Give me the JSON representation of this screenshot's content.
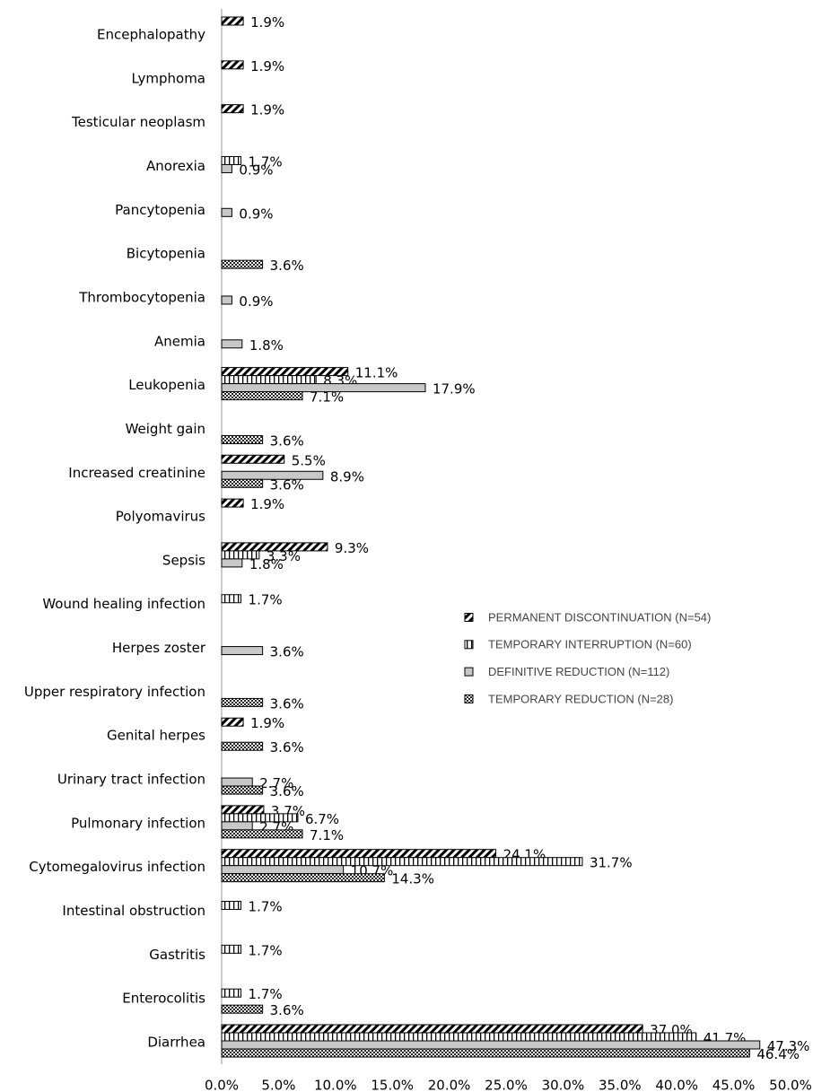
{
  "chart_data": {
    "type": "hbar",
    "categories": [
      "Encephalopathy",
      "Lymphoma",
      "Testicular neoplasm",
      "Anorexia",
      "Pancytopenia",
      "Bicytopenia",
      "Thrombocytopenia",
      "Anemia",
      "Leukopenia",
      "Weight gain",
      "Increased creatinine",
      "Polyomavirus",
      "Sepsis",
      "Wound healing infection",
      "Herpes zoster",
      "Upper respiratory infection",
      "Genital herpes",
      "Urinary tract infection",
      "Pulmonary infection",
      "Cytomegalovirus infection",
      "Intestinal obstruction",
      "Gastritis",
      "Enterocolitis",
      "Diarrhea"
    ],
    "series": [
      {
        "name": "PERMANENT DISCONTINUATION (N=54)",
        "color": "#000000",
        "pattern": "diagonal",
        "values": [
          1.9,
          1.9,
          1.9,
          null,
          null,
          null,
          null,
          null,
          11.1,
          null,
          5.5,
          1.9,
          9.3,
          null,
          null,
          null,
          1.9,
          null,
          3.7,
          24.1,
          null,
          null,
          null,
          37.0
        ],
        "value_labels": [
          "1.9%",
          "1.9%",
          "1.9%",
          null,
          null,
          null,
          null,
          null,
          "11.1%",
          null,
          "5.5%",
          "1.9%",
          "9.3%",
          null,
          null,
          null,
          "1.9%",
          null,
          "3.7%",
          "24.1%",
          null,
          null,
          null,
          "37.0%"
        ]
      },
      {
        "name": "TEMPORARY INTERRUPTION (N=60)",
        "color": "#000000",
        "pattern": "vertical",
        "values": [
          null,
          null,
          null,
          1.7,
          null,
          null,
          null,
          null,
          8.3,
          null,
          null,
          null,
          3.3,
          1.7,
          null,
          null,
          null,
          null,
          6.7,
          31.7,
          1.7,
          1.7,
          1.7,
          41.7
        ],
        "value_labels": [
          null,
          null,
          null,
          "1.7%",
          null,
          null,
          null,
          null,
          "8.3%",
          null,
          null,
          null,
          "3.3%",
          "1.7%",
          null,
          null,
          null,
          null,
          "6.7%",
          "31.7%",
          "1.7%",
          "1.7%",
          "1.7%",
          "41.7%"
        ]
      },
      {
        "name": "DEFINITIVE REDUCTION (N=112)",
        "color": "#c8c8c8",
        "pattern": "solid",
        "values": [
          null,
          null,
          null,
          0.9,
          0.9,
          null,
          0.9,
          1.8,
          17.9,
          null,
          8.9,
          null,
          1.8,
          null,
          3.6,
          null,
          null,
          2.7,
          2.7,
          10.7,
          null,
          null,
          null,
          47.3
        ],
        "value_labels": [
          null,
          null,
          null,
          "0.9%",
          "0.9%",
          null,
          "0.9%",
          "1.8%",
          "17.9%",
          null,
          "8.9%",
          null,
          "1.8%",
          null,
          "3.6%",
          null,
          null,
          "2.7%",
          "2.7%",
          "10.7%",
          null,
          null,
          null,
          "47.3%"
        ]
      },
      {
        "name": "TEMPORARY REDUCTION (N=28)",
        "color": "#000000",
        "pattern": "checker",
        "values": [
          null,
          null,
          null,
          null,
          null,
          3.6,
          null,
          null,
          7.1,
          3.6,
          3.6,
          null,
          null,
          null,
          null,
          3.6,
          3.6,
          3.6,
          7.1,
          14.3,
          null,
          null,
          3.6,
          46.4
        ],
        "value_labels": [
          null,
          null,
          null,
          null,
          null,
          "3.6%",
          null,
          null,
          "7.1%",
          "3.6%",
          "3.6%",
          null,
          null,
          null,
          null,
          "3.6%",
          "3.6%",
          "3.6%",
          "7.1%",
          "14.3%",
          null,
          null,
          "3.6%",
          "46.4%"
        ]
      }
    ],
    "xlim": [
      0,
      50
    ],
    "xticks": [
      {
        "value": 0,
        "label": "0.0%"
      },
      {
        "value": 5,
        "label": "5.0%"
      },
      {
        "value": 10,
        "label": "10.0%"
      },
      {
        "value": 15,
        "label": "15.0%"
      },
      {
        "value": 20,
        "label": "20.0%"
      },
      {
        "value": 25,
        "label": "25.0%"
      },
      {
        "value": 30,
        "label": "30.0%"
      },
      {
        "value": 35,
        "label": "35.0%"
      },
      {
        "value": 40,
        "label": "40.0%"
      },
      {
        "value": 45,
        "label": "45.0%"
      },
      {
        "value": 50,
        "label": "50.0%"
      }
    ],
    "grid": false,
    "legend": "right"
  }
}
